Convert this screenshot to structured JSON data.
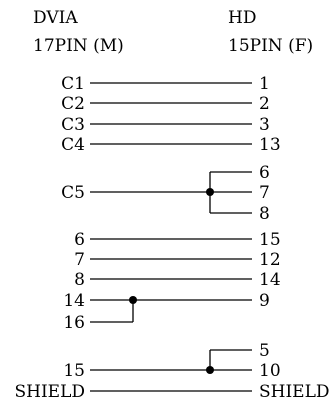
{
  "left_header": {
    "line1": "DVIA",
    "line2": "17PIN (M)"
  },
  "right_header": {
    "line1": "HD",
    "line2": "15PIN (F)"
  },
  "connections": [
    {
      "left": "C1",
      "right": "1"
    },
    {
      "left": "C2",
      "right": "2"
    },
    {
      "left": "C3",
      "right": "3"
    },
    {
      "left": "C4",
      "right": "13"
    },
    {
      "left": "",
      "right": "6"
    },
    {
      "left": "C5",
      "right": "7"
    },
    {
      "left": "",
      "right": "8"
    },
    {
      "left": "6",
      "right": "15"
    },
    {
      "left": "7",
      "right": "12"
    },
    {
      "left": "8",
      "right": "14"
    },
    {
      "left": "14",
      "right": "9"
    },
    {
      "left": "16",
      "right": ""
    },
    {
      "left": "",
      "right": "5"
    },
    {
      "left": "15",
      "right": "10"
    },
    {
      "left": "SHIELD",
      "right": "SHIELD"
    }
  ],
  "colors": {
    "line": "#000000",
    "text": "#000000",
    "background": "#ffffff"
  }
}
